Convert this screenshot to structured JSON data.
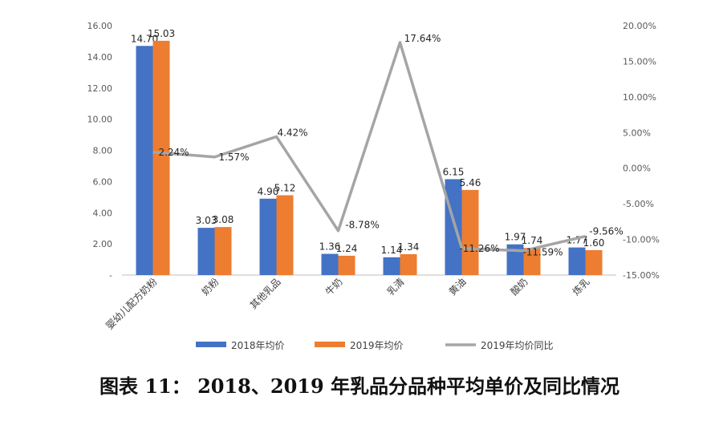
{
  "caption": "图表 11：  2018、2019 年乳品分品种平均单价及同比情况",
  "chart_data": {
    "type": "bar",
    "categories": [
      "婴幼儿配方奶粉",
      "奶粉",
      "其他乳品",
      "牛奶",
      "乳清",
      "黄油",
      "酸奶",
      "炼乳"
    ],
    "series": [
      {
        "name": "2018年均价",
        "type": "bar",
        "axis": "left",
        "color": "#4472C4",
        "values": [
          14.7,
          3.03,
          4.9,
          1.36,
          1.14,
          6.15,
          1.97,
          1.77
        ],
        "labels": [
          "14.70",
          "3.03",
          "4.90",
          "1.36",
          "1.14",
          "6.15",
          "1.97",
          "1.77"
        ]
      },
      {
        "name": "2019年均价",
        "type": "bar",
        "axis": "left",
        "color": "#ED7D31",
        "values": [
          15.03,
          3.08,
          5.12,
          1.24,
          1.34,
          5.46,
          1.74,
          1.6
        ],
        "labels": [
          "15.03",
          "3.08",
          "5.12",
          "1.24",
          "1.34",
          "5.46",
          "1.74",
          "1.60"
        ]
      },
      {
        "name": "2019年均价同比",
        "type": "line",
        "axis": "right",
        "color": "#A5A5A5",
        "values": [
          2.24,
          1.57,
          4.42,
          -8.78,
          17.64,
          -11.26,
          -11.59,
          -9.56
        ],
        "labels": [
          "2.24%",
          "1.57%",
          "4.42%",
          "-8.78%",
          "17.64%",
          "-11.26%",
          "-11.59%",
          "-9.56%"
        ]
      }
    ],
    "y_left": {
      "ylim": [
        0,
        16
      ],
      "ticks": [
        "-",
        "2.00",
        "4.00",
        "6.00",
        "8.00",
        "10.00",
        "12.00",
        "14.00",
        "16.00"
      ]
    },
    "y_right": {
      "ylim": [
        -15,
        20
      ],
      "ticks": [
        "-15.00%",
        "-10.00%",
        "-5.00%",
        "0.00%",
        "5.00%",
        "10.00%",
        "15.00%",
        "20.00%"
      ]
    },
    "legend": "bottom",
    "grid": false
  }
}
